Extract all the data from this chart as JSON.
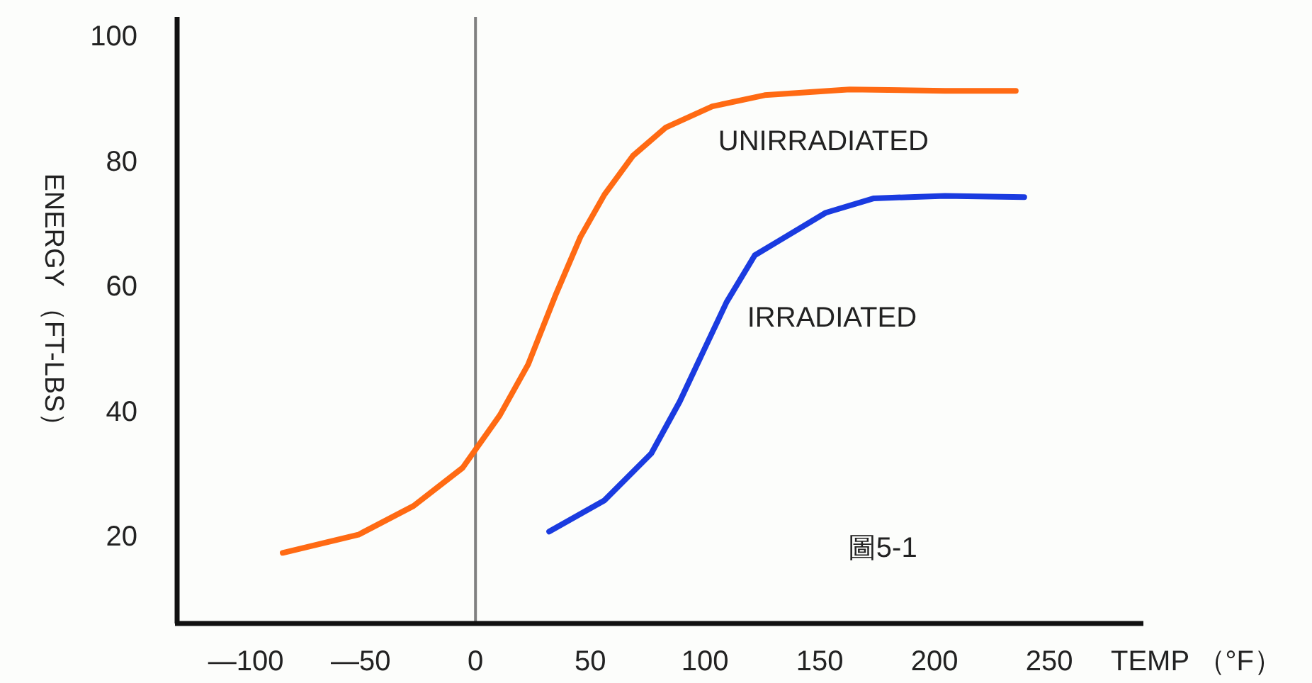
{
  "chart_data": {
    "type": "line",
    "xlabel": "TEMP （°F）",
    "ylabel": "ENERGY （FT-LBS）",
    "xlim": [
      -130,
      291
    ],
    "ylim": [
      6,
      103
    ],
    "xticks": [
      {
        "value": -100,
        "label": "—100"
      },
      {
        "value": -50,
        "label": "—50"
      },
      0,
      50,
      100,
      150,
      200,
      250
    ],
    "yticks": [
      20,
      40,
      60,
      80,
      100
    ],
    "ref_lines": [
      {
        "axis": "x",
        "value": 0,
        "color": "#808080"
      }
    ],
    "series": [
      {
        "name": "UNIRRADIATED",
        "color": "#ff6a13",
        "x": [
          -84,
          -51,
          -27,
          -5.6,
          10.6,
          22.9,
          35.2,
          45.7,
          56.2,
          68.6,
          82.8,
          103.2,
          126,
          163,
          204.5,
          235.4
        ],
        "values": [
          17.3,
          20.2,
          24.8,
          30.9,
          39.3,
          47.4,
          58.8,
          67.8,
          74.6,
          80.8,
          85.3,
          88.7,
          90.5,
          91.4,
          91.2,
          91.2
        ]
      },
      {
        "name": "IRRADIATED",
        "color": "#1a3be0",
        "x": [
          32.1,
          56.2,
          76.6,
          89,
          99.5,
          109.4,
          121.7,
          132.2,
          152.6,
          173.6,
          204.5,
          239.1
        ],
        "values": [
          20.7,
          25.7,
          33.2,
          41.5,
          49.7,
          57.4,
          64.9,
          67.2,
          71.7,
          74,
          74.4,
          74.2
        ]
      }
    ],
    "annotations": [
      "圖5-1"
    ]
  }
}
